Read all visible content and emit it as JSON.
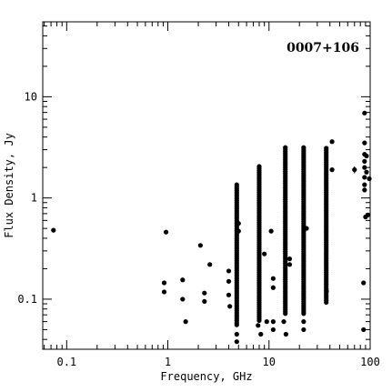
{
  "chart_data": {
    "type": "scatter",
    "title": "0007+106",
    "xlabel": "Frequency, GHz",
    "ylabel": "Flux Density, Jy",
    "xscale": "log",
    "yscale": "log",
    "xlim": [
      0.058,
      100
    ],
    "ylim": [
      0.032,
      55
    ],
    "xticks": [
      {
        "value": 0.1,
        "label": "0.1"
      },
      {
        "value": 1,
        "label": "1"
      },
      {
        "value": 10,
        "label": "10"
      },
      {
        "value": 100,
        "label": "100"
      }
    ],
    "yticks": [
      {
        "value": 0.1,
        "label": "0.1"
      },
      {
        "value": 1,
        "label": "1"
      },
      {
        "value": 10,
        "label": "10"
      }
    ],
    "grid": false,
    "columns": [
      {
        "x": 4.8,
        "ymin": 0.055,
        "ymax": 1.35
      },
      {
        "x": 8.0,
        "ymin": 0.06,
        "ymax": 2.05
      },
      {
        "x": 14.5,
        "ymin": 0.07,
        "ymax": 3.15
      },
      {
        "x": 22.0,
        "ymin": 0.07,
        "ymax": 3.15
      },
      {
        "x": 36.8,
        "ymin": 0.09,
        "ymax": 3.1
      }
    ],
    "points": [
      [
        0.074,
        0.48
      ],
      [
        0.96,
        0.46
      ],
      [
        0.92,
        0.145
      ],
      [
        0.92,
        0.118
      ],
      [
        1.4,
        0.155
      ],
      [
        1.4,
        0.1
      ],
      [
        1.5,
        0.06
      ],
      [
        2.1,
        0.34
      ],
      [
        2.3,
        0.115
      ],
      [
        2.3,
        0.095
      ],
      [
        2.6,
        0.22
      ],
      [
        4.0,
        0.19
      ],
      [
        4.0,
        0.15
      ],
      [
        4.0,
        0.11
      ],
      [
        4.1,
        0.085
      ],
      [
        4.8,
        0.045
      ],
      [
        4.8,
        0.038
      ],
      [
        5.0,
        0.47
      ],
      [
        5.0,
        0.56
      ],
      [
        7.8,
        0.055
      ],
      [
        8.3,
        0.045
      ],
      [
        9.0,
        0.28
      ],
      [
        9.5,
        0.06
      ],
      [
        10.5,
        0.47
      ],
      [
        11.0,
        0.16
      ],
      [
        11.0,
        0.13
      ],
      [
        11.0,
        0.06
      ],
      [
        11.0,
        0.05
      ],
      [
        14.0,
        0.06
      ],
      [
        14.7,
        0.045
      ],
      [
        16.0,
        0.25
      ],
      [
        16.0,
        0.22
      ],
      [
        22.0,
        0.06
      ],
      [
        22.0,
        0.05
      ],
      [
        23.5,
        0.5
      ],
      [
        37.0,
        0.12
      ],
      [
        42.0,
        3.6
      ],
      [
        42.0,
        1.9
      ],
      [
        70.0,
        1.9
      ],
      [
        86.0,
        0.05
      ],
      [
        86.0,
        0.145
      ],
      [
        88.0,
        6.9
      ],
      [
        88.0,
        3.5
      ],
      [
        88.0,
        2.7
      ],
      [
        88.0,
        2.3
      ],
      [
        88.0,
        2.0
      ],
      [
        88.0,
        1.6
      ],
      [
        88.0,
        1.35
      ],
      [
        88.0,
        1.2
      ],
      [
        90.0,
        0.65
      ],
      [
        92.0,
        2.6
      ],
      [
        92.0,
        1.8
      ],
      [
        95.0,
        0.68
      ],
      [
        98.0,
        1.55
      ]
    ],
    "errorbar": {
      "x": 70.0,
      "y": 1.9,
      "ylo": 1.75,
      "yhi": 2.05
    }
  }
}
